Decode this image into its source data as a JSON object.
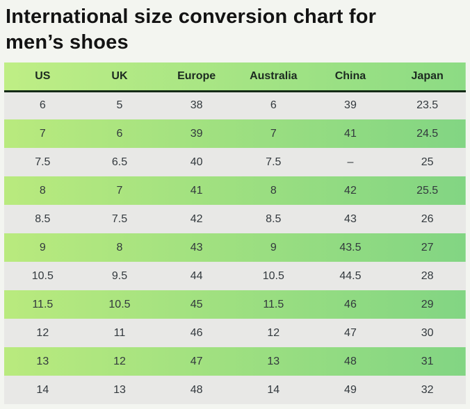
{
  "page": {
    "title": "International size conversion chart for men’s shoes"
  },
  "colors": {
    "page_background": "#f3f5f0",
    "title_text": "#131313",
    "header_gradient_left": "#bfee85",
    "header_gradient_right": "#8cdb84",
    "header_text": "#1c2a20",
    "header_bottom_border": "#142a16",
    "row_gray": "#e8e8e6",
    "row_green_gradient_left": "#b9ea7e",
    "row_green_gradient_right": "#82d583",
    "cell_text": "#32383d"
  },
  "chart_data": {
    "type": "table",
    "title": "International size conversion chart for men’s shoes",
    "columns": [
      "US",
      "UK",
      "Europe",
      "Australia",
      "China",
      "Japan"
    ],
    "rows": [
      [
        "6",
        "5",
        "38",
        "6",
        "39",
        "23.5"
      ],
      [
        "7",
        "6",
        "39",
        "7",
        "41",
        "24.5"
      ],
      [
        "7.5",
        "6.5",
        "40",
        "7.5",
        "–",
        "25"
      ],
      [
        "8",
        "7",
        "41",
        "8",
        "42",
        "25.5"
      ],
      [
        "8.5",
        "7.5",
        "42",
        "8.5",
        "43",
        "26"
      ],
      [
        "9",
        "8",
        "43",
        "9",
        "43.5",
        "27"
      ],
      [
        "10.5",
        "9.5",
        "44",
        "10.5",
        "44.5",
        "28"
      ],
      [
        "11.5",
        "10.5",
        "45",
        "11.5",
        "46",
        "29"
      ],
      [
        "12",
        "11",
        "46",
        "12",
        "47",
        "30"
      ],
      [
        "13",
        "12",
        "47",
        "13",
        "48",
        "31"
      ],
      [
        "14",
        "13",
        "48",
        "14",
        "49",
        "32"
      ]
    ],
    "row_striping": "odd rows gray, even rows green gradient",
    "legend_position": "none",
    "grid": false
  }
}
